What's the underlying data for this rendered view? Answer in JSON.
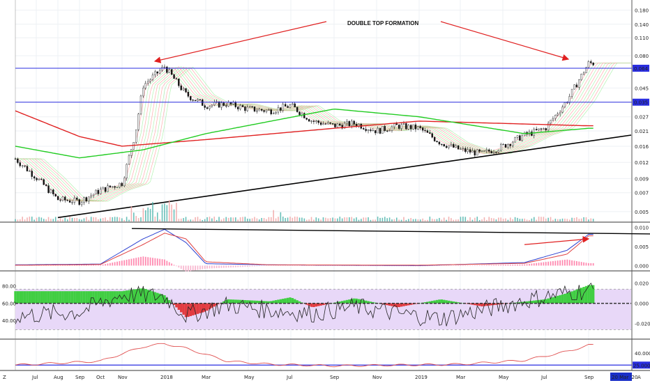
{
  "chart_data": [
    {
      "type": "candlestick",
      "panel": "price",
      "title": "",
      "annotation": "DOUBLE TOP FORMATION",
      "y_scale": "log",
      "y_ticks": [
        "0.180",
        "0.140",
        "0.110",
        "0.080",
        "0.064",
        "0.045",
        "0.035",
        "0.027",
        "0.021",
        "0.016",
        "0.012",
        "0.009",
        "0.007",
        "0.005"
      ],
      "y_tick_values": [
        0.18,
        0.14,
        0.11,
        0.08,
        0.064,
        0.045,
        0.035,
        0.027,
        0.021,
        0.016,
        0.012,
        0.009,
        0.007,
        0.005
      ],
      "ylim": [
        0.0042,
        0.21
      ],
      "horizontal_levels": [
        {
          "label": "0.064",
          "value": 0.064,
          "color": "#2a2ee0"
        },
        {
          "label": "0.035",
          "value": 0.035,
          "color": "#2a2ee0"
        }
      ],
      "trendline": {
        "from": [
          "2017-08",
          0.0045
        ],
        "to": [
          "2019-11",
          0.0195
        ],
        "color": "#000000"
      },
      "price_path": [
        [
          "2017-06",
          0.0128
        ],
        [
          "2017-07",
          0.0092
        ],
        [
          "2017-08",
          0.0062
        ],
        [
          "2017-09",
          0.006
        ],
        [
          "2017-10",
          0.0073
        ],
        [
          "2017-11",
          0.0083
        ],
        [
          "2017-11-20",
          0.02
        ],
        [
          "2017-12",
          0.047
        ],
        [
          "2018-01",
          0.066
        ],
        [
          "2018-02",
          0.04
        ],
        [
          "2018-03",
          0.033
        ],
        [
          "2018-04",
          0.034
        ],
        [
          "2018-05",
          0.031
        ],
        [
          "2018-06",
          0.03
        ],
        [
          "2018-07",
          0.033
        ],
        [
          "2018-08",
          0.025
        ],
        [
          "2018-09",
          0.023
        ],
        [
          "2018-10",
          0.024
        ],
        [
          "2018-11",
          0.021
        ],
        [
          "2018-12",
          0.023
        ],
        [
          "2019-01",
          0.022
        ],
        [
          "2019-02",
          0.017
        ],
        [
          "2019-03",
          0.015
        ],
        [
          "2019-04",
          0.014
        ],
        [
          "2019-05",
          0.016
        ],
        [
          "2019-06",
          0.0195
        ],
        [
          "2019-07",
          0.022
        ],
        [
          "2019-08",
          0.036
        ],
        [
          "2019-09",
          0.07
        ]
      ],
      "moving_averages": [
        {
          "color": "#e02020",
          "path": [
            [
              "2017-06",
              0.03
            ],
            [
              "2017-09",
              0.019
            ],
            [
              "2017-11",
              0.016
            ],
            [
              "2018-03",
              0.018
            ],
            [
              "2018-09",
              0.022
            ],
            [
              "2019-01",
              0.025
            ],
            [
              "2019-05",
              0.024
            ],
            [
              "2019-09",
              0.023
            ]
          ]
        },
        {
          "color": "#22cc22",
          "path": [
            [
              "2017-06",
              0.016
            ],
            [
              "2017-09",
              0.013
            ],
            [
              "2017-12",
              0.015
            ],
            [
              "2018-03",
              0.02
            ],
            [
              "2018-09",
              0.031
            ],
            [
              "2019-01",
              0.027
            ],
            [
              "2019-06",
              0.02
            ],
            [
              "2019-09",
              0.022
            ]
          ]
        }
      ]
    },
    {
      "type": "line",
      "panel": "macd",
      "y_ticks": [
        "0.010",
        "0.005",
        "0.000"
      ],
      "y_tick_values": [
        0.01,
        0.005,
        0.0
      ],
      "ylim": [
        -0.0012,
        0.0112
      ],
      "trendline": {
        "from": [
          "2017-11-15",
          0.0097
        ],
        "to": [
          "2019-10",
          0.0083
        ],
        "color": "#000000"
      },
      "series": [
        {
          "color": "#2a3fd0",
          "values": [
            [
              "2017-06",
              0.0002
            ],
            [
              "2017-10",
              0.0004
            ],
            [
              "2017-12",
              0.007
            ],
            [
              "2018-01",
              0.0095
            ],
            [
              "2018-02",
              0.006
            ],
            [
              "2018-03",
              0.0005
            ],
            [
              "2018-06",
              0.0002
            ],
            [
              "2019-01",
              0.0
            ],
            [
              "2019-06",
              0.0008
            ],
            [
              "2019-08",
              0.004
            ],
            [
              "2019-09",
              0.0082
            ]
          ]
        },
        {
          "color": "#e04040",
          "values": [
            [
              "2017-06",
              0.0001
            ],
            [
              "2017-10",
              0.0003
            ],
            [
              "2017-12",
              0.0055
            ],
            [
              "2018-01",
              0.0085
            ],
            [
              "2018-02",
              0.007
            ],
            [
              "2018-03",
              0.001
            ],
            [
              "2018-06",
              0.0002
            ],
            [
              "2019-01",
              0.0001
            ],
            [
              "2019-06",
              0.0006
            ],
            [
              "2019-08",
              0.003
            ],
            [
              "2019-09",
              0.0078
            ]
          ]
        }
      ],
      "arrow": {
        "from": [
          "2019-06",
          0.0055
        ],
        "to": [
          "2019-09",
          0.007
        ],
        "color": "#e02020"
      }
    },
    {
      "type": "area",
      "panel": "oscillator",
      "y_ticks_left": [
        "80.00",
        "60.00",
        "40.00"
      ],
      "y_tick_values_left": [
        80,
        60,
        40
      ],
      "y_ticks_right": [
        "0.020",
        "0.000",
        "-0.020"
      ],
      "y_tick_values_right": [
        0.02,
        0.0,
        -0.02
      ],
      "band": {
        "upper": 0.014,
        "lower": -0.026,
        "color": "#e8d8f8"
      },
      "histogram": [
        [
          "2017-11",
          0.012
        ],
        [
          "2017-12",
          0.015
        ],
        [
          "2018-01",
          0.008
        ],
        [
          "2018-02",
          -0.014
        ],
        [
          "2018-03",
          -0.008
        ],
        [
          "2018-04",
          0.004
        ],
        [
          "2018-06",
          0.002
        ],
        [
          "2018-07",
          0.006
        ],
        [
          "2018-08",
          -0.004
        ],
        [
          "2018-10",
          0.005
        ],
        [
          "2018-12",
          -0.004
        ],
        [
          "2019-02",
          0.004
        ],
        [
          "2019-04",
          -0.003
        ],
        [
          "2019-07",
          0.004
        ],
        [
          "2019-08",
          0.01
        ],
        [
          "2019-09",
          0.018
        ]
      ],
      "line_series": [
        [
          "2017-06",
          45
        ],
        [
          "2017-09",
          50
        ],
        [
          "2017-11",
          70
        ],
        [
          "2018-01",
          68
        ],
        [
          "2018-02",
          46
        ],
        [
          "2018-04",
          58
        ],
        [
          "2018-06",
          52
        ],
        [
          "2018-08",
          48
        ],
        [
          "2018-10",
          56
        ],
        [
          "2018-12",
          48
        ],
        [
          "2019-02",
          42
        ],
        [
          "2019-04",
          52
        ],
        [
          "2019-06",
          63
        ],
        [
          "2019-08",
          72
        ],
        [
          "2019-09",
          75
        ]
      ]
    },
    {
      "type": "line",
      "panel": "adx",
      "y_ticks": [
        "40.000",
        "25.000"
      ],
      "y_tick_values": [
        40,
        25
      ],
      "ylim": [
        20,
        55
      ],
      "level": {
        "label": "25.000",
        "value": 25,
        "color": "#2a2ee0"
      },
      "series": [
        {
          "color": "#e05050",
          "values": [
            [
              "2017-06",
              25
            ],
            [
              "2017-10",
              30
            ],
            [
              "2017-12",
              48
            ],
            [
              "2018-01",
              52
            ],
            [
              "2018-02",
              46
            ],
            [
              "2018-04",
              30
            ],
            [
              "2018-06",
              26
            ],
            [
              "2018-09",
              24
            ],
            [
              "2018-12",
              25
            ],
            [
              "2019-03",
              26
            ],
            [
              "2019-06",
              31
            ],
            [
              "2019-08",
              42
            ],
            [
              "2019-09",
              50
            ]
          ]
        }
      ]
    }
  ],
  "x_axis": {
    "labels": [
      "Jul",
      "Aug",
      "Sep",
      "Oct",
      "Nov",
      "2018",
      "Mar",
      "May",
      "Jul",
      "Sep",
      "Nov",
      "2019",
      "Mar",
      "May",
      "Jul",
      "Sep"
    ],
    "dates": [
      "2017-07",
      "2017-08",
      "2017-09",
      "2017-10",
      "2017-11",
      "2018-01",
      "2018-03",
      "2018-05",
      "2018-07",
      "2018-09",
      "2018-11",
      "2019-01",
      "2019-03",
      "2019-05",
      "2019-07",
      "2019-09"
    ],
    "date_badge": "20 Mar '20",
    "corner_left": "Z",
    "corner_right": "A"
  },
  "colors": {
    "accent": "#2a2ee0",
    "up": "#22cc22",
    "down": "#e02020",
    "volume": "#44b0a8",
    "badge": "#1a30c8"
  }
}
